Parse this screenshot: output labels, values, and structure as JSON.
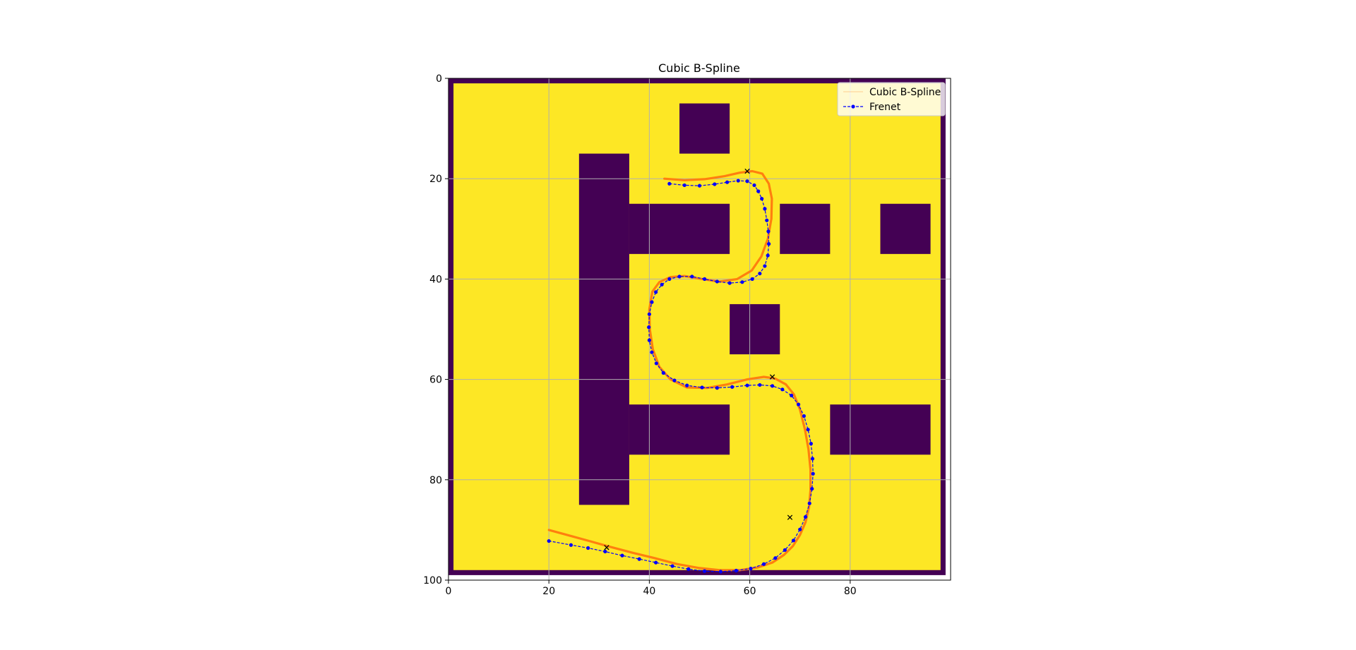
{
  "chart_data": {
    "type": "line",
    "title": "Cubic B-Spline",
    "xlabel": "",
    "ylabel": "",
    "xlim": [
      0,
      100
    ],
    "ylim": [
      100,
      0
    ],
    "x_ticks": [
      0,
      20,
      40,
      60,
      80
    ],
    "y_ticks": [
      0,
      20,
      40,
      60,
      80,
      100
    ],
    "grid": true,
    "legend_position": "top-right",
    "colors": {
      "free_space": "#fde725",
      "obstacle": "#440154",
      "spline": "#ff7f0e",
      "frenet": "#0000ff",
      "grid": "#b0b0b0"
    },
    "map": {
      "size": [
        100,
        100
      ],
      "border_cells": 1,
      "obstacles": [
        {
          "x": [
            26,
            36
          ],
          "y": [
            15,
            85
          ]
        },
        {
          "x": [
            36,
            56
          ],
          "y": [
            25,
            35
          ]
        },
        {
          "x": [
            46,
            56
          ],
          "y": [
            5,
            15
          ]
        },
        {
          "x": [
            66,
            76
          ],
          "y": [
            25,
            35
          ]
        },
        {
          "x": [
            86,
            96
          ],
          "y": [
            25,
            35
          ]
        },
        {
          "x": [
            56,
            66
          ],
          "y": [
            45,
            55
          ]
        },
        {
          "x": [
            36,
            56
          ],
          "y": [
            65,
            75
          ]
        },
        {
          "x": [
            76,
            96
          ],
          "y": [
            65,
            75
          ]
        }
      ]
    },
    "control_points": [
      {
        "x": 59.5,
        "y": 18.5
      },
      {
        "x": 64.5,
        "y": 59.5
      },
      {
        "x": 68.0,
        "y": 87.5
      },
      {
        "x": 31.5,
        "y": 93.5
      }
    ],
    "series": [
      {
        "name": "Cubic B-Spline",
        "marker": "none",
        "x": [
          43,
          47,
          51,
          55,
          58,
          60.5,
          62.5,
          63.8,
          64.4,
          64.3,
          63.6,
          62.3,
          60.4,
          57.5,
          54,
          50.5,
          47,
          44.2,
          42,
          40.6,
          40,
          40.1,
          40.7,
          42,
          44.2,
          47.5,
          51.5,
          55.5,
          59.5,
          62.8,
          65,
          67.2,
          68.8,
          70,
          71,
          71.7,
          72.1,
          72.1,
          71.8,
          71.1,
          70,
          68.6,
          66.8,
          64.5,
          61.5,
          58,
          54,
          50,
          45.5,
          41,
          36.5,
          32,
          28,
          24,
          20
        ],
        "y": [
          20.0,
          20.3,
          20.1,
          19.5,
          18.8,
          18.5,
          19.0,
          21.0,
          24.0,
          28.0,
          32.0,
          35.5,
          38.3,
          40.0,
          40.5,
          40.0,
          39.4,
          39.6,
          40.6,
          42.5,
          46.0,
          50.0,
          54.0,
          57.5,
          60.0,
          61.6,
          61.7,
          61.0,
          60.0,
          59.5,
          59.8,
          61.0,
          63.0,
          66.0,
          70.0,
          74.0,
          78.0,
          82.0,
          85.5,
          88.5,
          91.0,
          93.2,
          95.0,
          96.5,
          97.5,
          98.0,
          98.0,
          97.6,
          96.8,
          95.6,
          94.5,
          93.3,
          92.2,
          91.1,
          90.0
        ]
      },
      {
        "name": "Frenet",
        "marker": "circle",
        "x": [
          44,
          47,
          50,
          53,
          55.5,
          57.7,
          59.5,
          60.9,
          61.7,
          62.4,
          63,
          63.4,
          63.7,
          63.8,
          63.6,
          63,
          62,
          60.5,
          58.5,
          56,
          53.5,
          51,
          48.5,
          46,
          44,
          42.5,
          41.3,
          40.5,
          40,
          39.9,
          40,
          40.5,
          41.4,
          42.8,
          45,
          47.5,
          50.5,
          53.5,
          56.5,
          59.5,
          62,
          64.5,
          66.5,
          68.3,
          69.7,
          70.8,
          71.6,
          72.2,
          72.5,
          72.6,
          72.4,
          71.9,
          71.1,
          70,
          68.7,
          67,
          65.1,
          62.8,
          60.2,
          57.3,
          54.2,
          51,
          47.8,
          44.6,
          41.3,
          38,
          34.6,
          31.2,
          27.8,
          24.4,
          20
        ],
        "y": [
          21.0,
          21.3,
          21.4,
          21.1,
          20.7,
          20.4,
          20.5,
          21.3,
          22.5,
          24.0,
          26.0,
          28.3,
          30.5,
          33.0,
          35.3,
          37.4,
          38.9,
          40.0,
          40.6,
          40.8,
          40.5,
          40.0,
          39.5,
          39.5,
          40.0,
          41.1,
          42.6,
          44.6,
          47.0,
          49.6,
          52.2,
          54.6,
          56.8,
          58.7,
          60.2,
          61.2,
          61.6,
          61.7,
          61.5,
          61.2,
          61.1,
          61.3,
          62.0,
          63.2,
          65.0,
          67.3,
          70.0,
          72.8,
          75.8,
          78.8,
          81.8,
          84.7,
          87.4,
          89.9,
          92.1,
          94.0,
          95.6,
          96.8,
          97.7,
          98.1,
          98.3,
          98.2,
          97.8,
          97.2,
          96.5,
          95.8,
          95.1,
          94.3,
          93.6,
          93.0,
          92.2
        ]
      }
    ]
  }
}
